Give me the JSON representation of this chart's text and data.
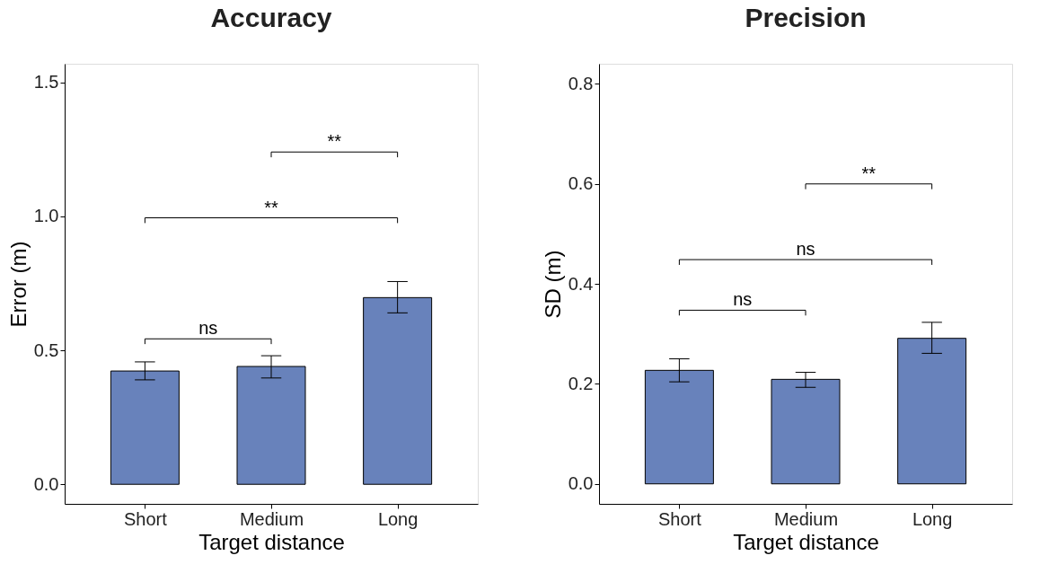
{
  "chart_data": [
    {
      "type": "bar",
      "title": "Accuracy",
      "xlabel": "Target distance",
      "ylabel": "Error (m)",
      "categories": [
        "Short",
        "Medium",
        "Long"
      ],
      "values": [
        0.423,
        0.44,
        0.697
      ],
      "color": "#6882bb",
      "errors": [
        [
          0.39,
          0.457
        ],
        [
          0.397,
          0.48
        ],
        [
          0.64,
          0.757
        ]
      ],
      "ylim": [
        -0.073,
        1.57
      ],
      "yticks": [
        {
          "value": 0,
          "label": "0.0"
        },
        0.5,
        {
          "value": 1,
          "label": "1.0"
        },
        1.5
      ],
      "grid": false,
      "annotations": [
        "ns",
        "**",
        "**"
      ]
    },
    {
      "type": "bar",
      "title": "Precision",
      "xlabel": "Target distance",
      "ylabel": "SD (m)",
      "categories": [
        "Short",
        "Medium",
        "Long"
      ],
      "values": [
        0.227,
        0.209,
        0.291
      ],
      "color": "#6882bb",
      "errors": [
        [
          0.204,
          0.25
        ],
        [
          0.193,
          0.223
        ],
        [
          0.261,
          0.323
        ]
      ],
      "ylim": [
        -0.04,
        0.84
      ],
      "yticks": [
        {
          "value": 0,
          "label": "0.0"
        },
        0.2,
        0.4,
        0.6,
        0.8
      ],
      "grid": false,
      "annotations": [
        "ns",
        "ns",
        "**"
      ]
    }
  ]
}
